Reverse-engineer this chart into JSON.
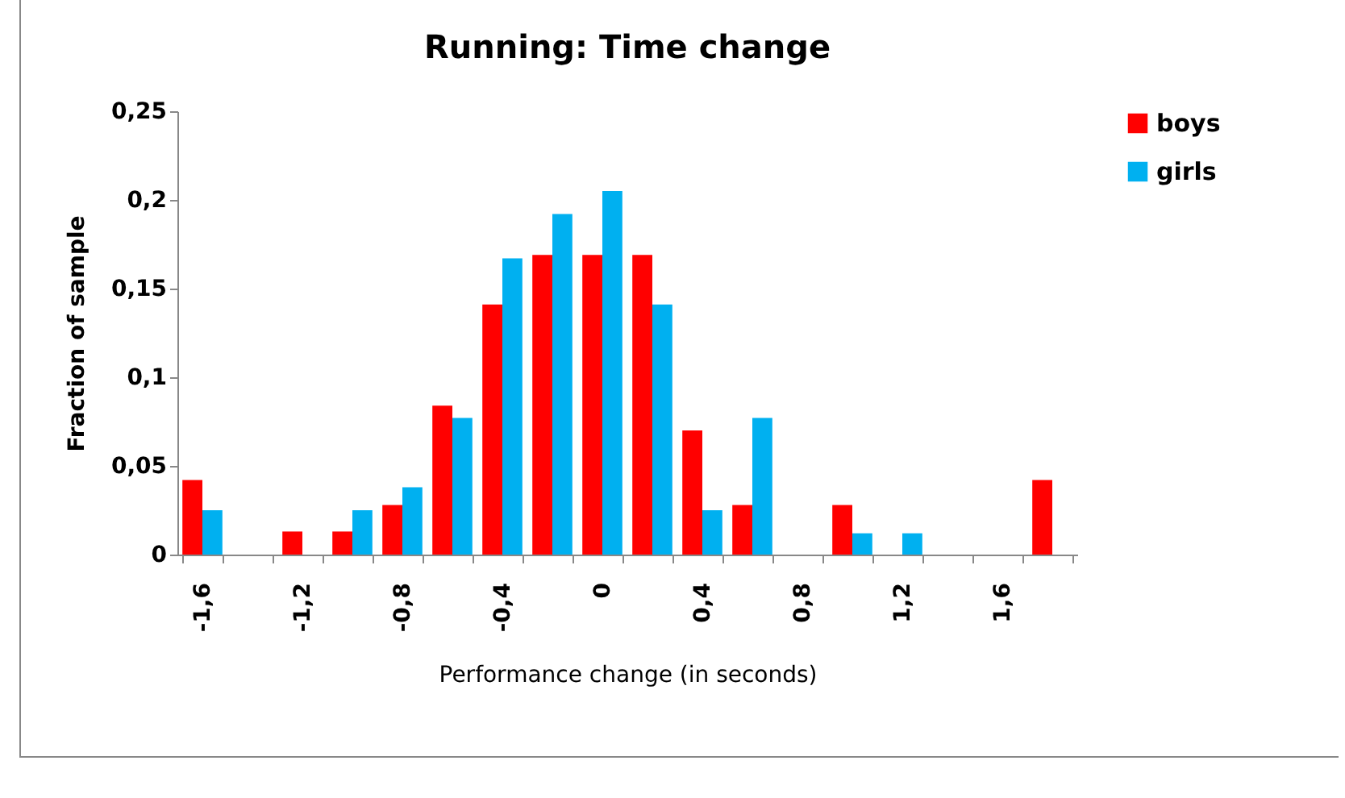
{
  "chart_data": {
    "type": "bar",
    "title": "Running: Time change",
    "xlabel": "Performance change (in seconds)",
    "ylabel": "Fraction of sample",
    "categories": [
      "-1,6",
      null,
      "-1,2",
      null,
      "-0,8",
      null,
      "-0,4",
      null,
      "0",
      null,
      "0,4",
      null,
      "0,8",
      null,
      "1,2",
      null,
      "1,6",
      null
    ],
    "series": [
      {
        "name": "boys",
        "color": "#ff0000",
        "values": [
          0.042,
          0,
          0.013,
          0.013,
          0.028,
          0.084,
          0.141,
          0.169,
          0.169,
          0.169,
          0.07,
          0.028,
          0,
          0.028,
          0,
          0,
          0,
          0.042
        ]
      },
      {
        "name": "girls",
        "color": "#00b0f0",
        "values": [
          0.025,
          0,
          0,
          0.025,
          0.038,
          0.077,
          0.167,
          0.192,
          0.205,
          0.141,
          0.025,
          0.077,
          0,
          0.012,
          0.012,
          0,
          0,
          0
        ]
      }
    ],
    "ylim": [
      0,
      0.25
    ],
    "yticks": [
      {
        "value": 0,
        "label": "0"
      },
      {
        "value": 0.05,
        "label": "0,05"
      },
      {
        "value": 0.1,
        "label": "0,1"
      },
      {
        "value": 0.15,
        "label": "0,15"
      },
      {
        "value": 0.2,
        "label": "0,2"
      },
      {
        "value": 0.25,
        "label": "0,25"
      }
    ],
    "grid": false,
    "legend": "right"
  }
}
